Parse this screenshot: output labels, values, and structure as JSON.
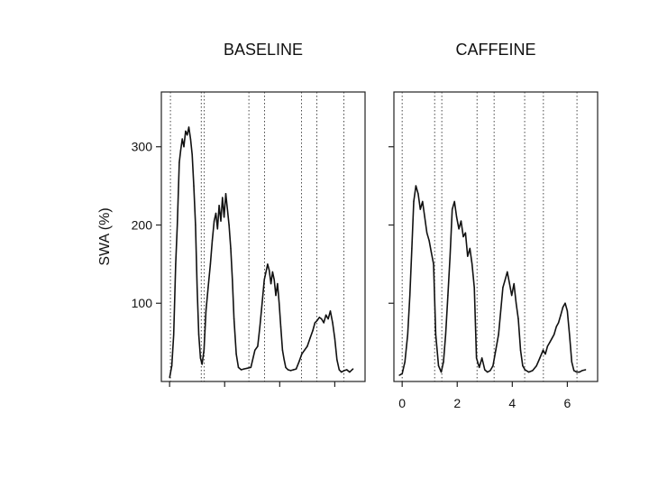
{
  "chart_data": [
    {
      "type": "line",
      "title": "BASELINE",
      "xlabel": "",
      "ylabel": "SWA (%)",
      "xlim": [
        -0.3,
        7.1
      ],
      "ylim": [
        0,
        370
      ],
      "yticks": [
        100,
        200,
        300
      ],
      "xticks": [
        0,
        2,
        4,
        6
      ],
      "show_xtick_labels": false,
      "show_ytick_labels": true,
      "grid": false,
      "legend": "none",
      "vlines": [
        0.03,
        1.15,
        1.26,
        2.88,
        3.45,
        4.79,
        5.35,
        6.33
      ],
      "series": [
        {
          "x": [
            0.0,
            0.08,
            0.15,
            0.22,
            0.28,
            0.35,
            0.4,
            0.46,
            0.52,
            0.58,
            0.64,
            0.7,
            0.76,
            0.82,
            0.88,
            0.94,
            1.0,
            1.06,
            1.12,
            1.18,
            1.25,
            1.32,
            1.4,
            1.48,
            1.55,
            1.62,
            1.68,
            1.74,
            1.8,
            1.86,
            1.92,
            1.98,
            2.04,
            2.1,
            2.16,
            2.22,
            2.28,
            2.34,
            2.42,
            2.5,
            2.6,
            2.7,
            2.82,
            2.95,
            3.1,
            3.2,
            3.28,
            3.36,
            3.44,
            3.5,
            3.56,
            3.62,
            3.68,
            3.74,
            3.8,
            3.86,
            3.92,
            3.98,
            4.04,
            4.1,
            4.16,
            4.22,
            4.3,
            4.4,
            4.5,
            4.6,
            4.7,
            4.8,
            4.9,
            5.0,
            5.1,
            5.2,
            5.28,
            5.36,
            5.44,
            5.52,
            5.6,
            5.68,
            5.76,
            5.84,
            5.92,
            6.0,
            6.08,
            6.16,
            6.24,
            6.34,
            6.44,
            6.54,
            6.66
          ],
          "y": [
            5,
            20,
            60,
            150,
            200,
            280,
            295,
            310,
            300,
            320,
            315,
            325,
            310,
            290,
            250,
            200,
            120,
            60,
            30,
            22,
            40,
            90,
            120,
            150,
            180,
            205,
            215,
            195,
            225,
            205,
            235,
            210,
            240,
            220,
            200,
            170,
            130,
            80,
            35,
            18,
            15,
            16,
            17,
            18,
            40,
            45,
            70,
            100,
            130,
            140,
            150,
            142,
            125,
            140,
            130,
            110,
            125,
            100,
            70,
            40,
            28,
            18,
            15,
            14,
            15,
            16,
            25,
            35,
            40,
            45,
            55,
            65,
            75,
            78,
            82,
            80,
            75,
            85,
            80,
            90,
            75,
            55,
            28,
            15,
            12,
            14,
            15,
            12,
            16
          ]
        }
      ]
    },
    {
      "type": "line",
      "title": "CAFFEINE",
      "xlabel": "",
      "ylabel": "",
      "xlim": [
        -0.3,
        7.1
      ],
      "ylim": [
        0,
        370
      ],
      "yticks": [
        100,
        200,
        300
      ],
      "xticks": [
        0,
        2,
        4,
        6
      ],
      "show_xtick_labels": true,
      "show_ytick_labels": false,
      "grid": false,
      "legend": "none",
      "vlines": [
        0.0,
        1.18,
        1.44,
        2.72,
        3.34,
        4.45,
        5.13,
        6.35
      ],
      "series": [
        {
          "x": [
            -0.1,
            0.0,
            0.1,
            0.2,
            0.28,
            0.35,
            0.42,
            0.5,
            0.58,
            0.66,
            0.74,
            0.82,
            0.9,
            0.98,
            1.06,
            1.14,
            1.22,
            1.32,
            1.42,
            1.5,
            1.58,
            1.66,
            1.74,
            1.82,
            1.9,
            1.98,
            2.06,
            2.14,
            2.22,
            2.3,
            2.38,
            2.46,
            2.54,
            2.62,
            2.7,
            2.8,
            2.9,
            3.0,
            3.1,
            3.2,
            3.3,
            3.4,
            3.5,
            3.58,
            3.66,
            3.74,
            3.82,
            3.9,
            3.98,
            4.06,
            4.14,
            4.22,
            4.3,
            4.38,
            4.46,
            4.6,
            4.74,
            4.88,
            5.0,
            5.12,
            5.2,
            5.28,
            5.36,
            5.44,
            5.52,
            5.6,
            5.68,
            5.76,
            5.84,
            5.92,
            6.0,
            6.08,
            6.16,
            6.24,
            6.34,
            6.44,
            6.54,
            6.66
          ],
          "y": [
            8,
            10,
            25,
            60,
            110,
            170,
            230,
            250,
            240,
            220,
            230,
            210,
            190,
            180,
            165,
            150,
            60,
            20,
            12,
            25,
            60,
            110,
            160,
            220,
            230,
            210,
            195,
            205,
            185,
            190,
            160,
            170,
            150,
            120,
            30,
            18,
            30,
            15,
            12,
            14,
            20,
            40,
            60,
            90,
            120,
            130,
            140,
            125,
            110,
            125,
            100,
            80,
            40,
            20,
            15,
            12,
            14,
            20,
            30,
            40,
            35,
            45,
            50,
            55,
            60,
            70,
            75,
            85,
            95,
            100,
            90,
            60,
            25,
            14,
            12,
            12,
            14,
            15
          ]
        }
      ]
    }
  ]
}
